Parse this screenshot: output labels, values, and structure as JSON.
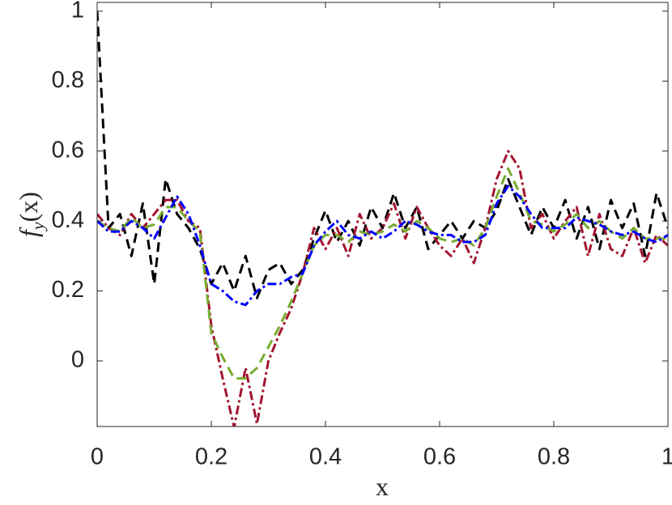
{
  "chart_data": {
    "type": "line",
    "xlabel": "x",
    "ylabel": [
      "f",
      "y",
      "(x)"
    ],
    "x": [
      0,
      0.02,
      0.04,
      0.06,
      0.08,
      0.1,
      0.12,
      0.14,
      0.16,
      0.18,
      0.2,
      0.22,
      0.24,
      0.26,
      0.28,
      0.3,
      0.32,
      0.34,
      0.36,
      0.38,
      0.4,
      0.42,
      0.44,
      0.46,
      0.48,
      0.5,
      0.52,
      0.54,
      0.56,
      0.58,
      0.6,
      0.62,
      0.64,
      0.66,
      0.68,
      0.7,
      0.72,
      0.74,
      0.76,
      0.78,
      0.8,
      0.82,
      0.84,
      0.86,
      0.88,
      0.9,
      0.92,
      0.94,
      0.96,
      0.98,
      1
    ],
    "series": [
      {
        "color": "#000000",
        "style": "dashed",
        "values": [
          1.0,
          0.38,
          0.42,
          0.3,
          0.45,
          0.22,
          0.52,
          0.42,
          0.38,
          0.32,
          0.22,
          0.28,
          0.2,
          0.3,
          0.18,
          0.26,
          0.28,
          0.22,
          0.26,
          0.35,
          0.43,
          0.34,
          0.4,
          0.33,
          0.44,
          0.38,
          0.48,
          0.38,
          0.44,
          0.32,
          0.36,
          0.4,
          0.35,
          0.4,
          0.38,
          0.43,
          0.52,
          0.44,
          0.36,
          0.44,
          0.38,
          0.46,
          0.35,
          0.44,
          0.32,
          0.46,
          0.38,
          0.45,
          0.3,
          0.48,
          0.38
        ]
      },
      {
        "color": "#a2142f",
        "style": "dashdot",
        "values": [
          0.42,
          0.38,
          0.36,
          0.42,
          0.38,
          0.42,
          0.46,
          0.46,
          0.4,
          0.38,
          0.1,
          -0.05,
          -0.19,
          -0.02,
          -0.18,
          0.0,
          0.08,
          0.15,
          0.25,
          0.38,
          0.32,
          0.38,
          0.3,
          0.42,
          0.35,
          0.38,
          0.45,
          0.35,
          0.44,
          0.38,
          0.33,
          0.3,
          0.35,
          0.28,
          0.38,
          0.52,
          0.6,
          0.55,
          0.38,
          0.42,
          0.35,
          0.4,
          0.44,
          0.3,
          0.42,
          0.32,
          0.3,
          0.38,
          0.28,
          0.36,
          0.33
        ]
      },
      {
        "color": "#77ac30",
        "style": "dashed",
        "values": [
          0.4,
          0.38,
          0.37,
          0.41,
          0.38,
          0.39,
          0.44,
          0.44,
          0.4,
          0.37,
          0.08,
          0.01,
          -0.05,
          -0.05,
          -0.02,
          0.04,
          0.1,
          0.17,
          0.25,
          0.33,
          0.36,
          0.36,
          0.34,
          0.37,
          0.36,
          0.37,
          0.39,
          0.37,
          0.4,
          0.38,
          0.35,
          0.34,
          0.35,
          0.33,
          0.38,
          0.47,
          0.55,
          0.48,
          0.4,
          0.39,
          0.37,
          0.39,
          0.42,
          0.38,
          0.4,
          0.37,
          0.35,
          0.38,
          0.35,
          0.35,
          0.35
        ]
      },
      {
        "color": "#0000ff",
        "style": "dashdot",
        "values": [
          0.4,
          0.37,
          0.37,
          0.4,
          0.38,
          0.35,
          0.41,
          0.47,
          0.42,
          0.33,
          0.22,
          0.2,
          0.17,
          0.16,
          0.2,
          0.22,
          0.22,
          0.24,
          0.25,
          0.33,
          0.37,
          0.4,
          0.36,
          0.35,
          0.37,
          0.35,
          0.37,
          0.4,
          0.39,
          0.37,
          0.36,
          0.36,
          0.34,
          0.34,
          0.36,
          0.45,
          0.5,
          0.47,
          0.42,
          0.38,
          0.38,
          0.38,
          0.41,
          0.4,
          0.39,
          0.37,
          0.36,
          0.37,
          0.35,
          0.34,
          0.36
        ]
      }
    ],
    "xlim": [
      0,
      1
    ],
    "ylim": [
      -0.1875,
      1.025
    ],
    "xticks": [
      0,
      0.2,
      0.4,
      0.6,
      0.8,
      1
    ],
    "yticks": [
      0,
      0.2,
      0.4,
      0.6,
      0.8,
      1
    ],
    "grid": false
  }
}
